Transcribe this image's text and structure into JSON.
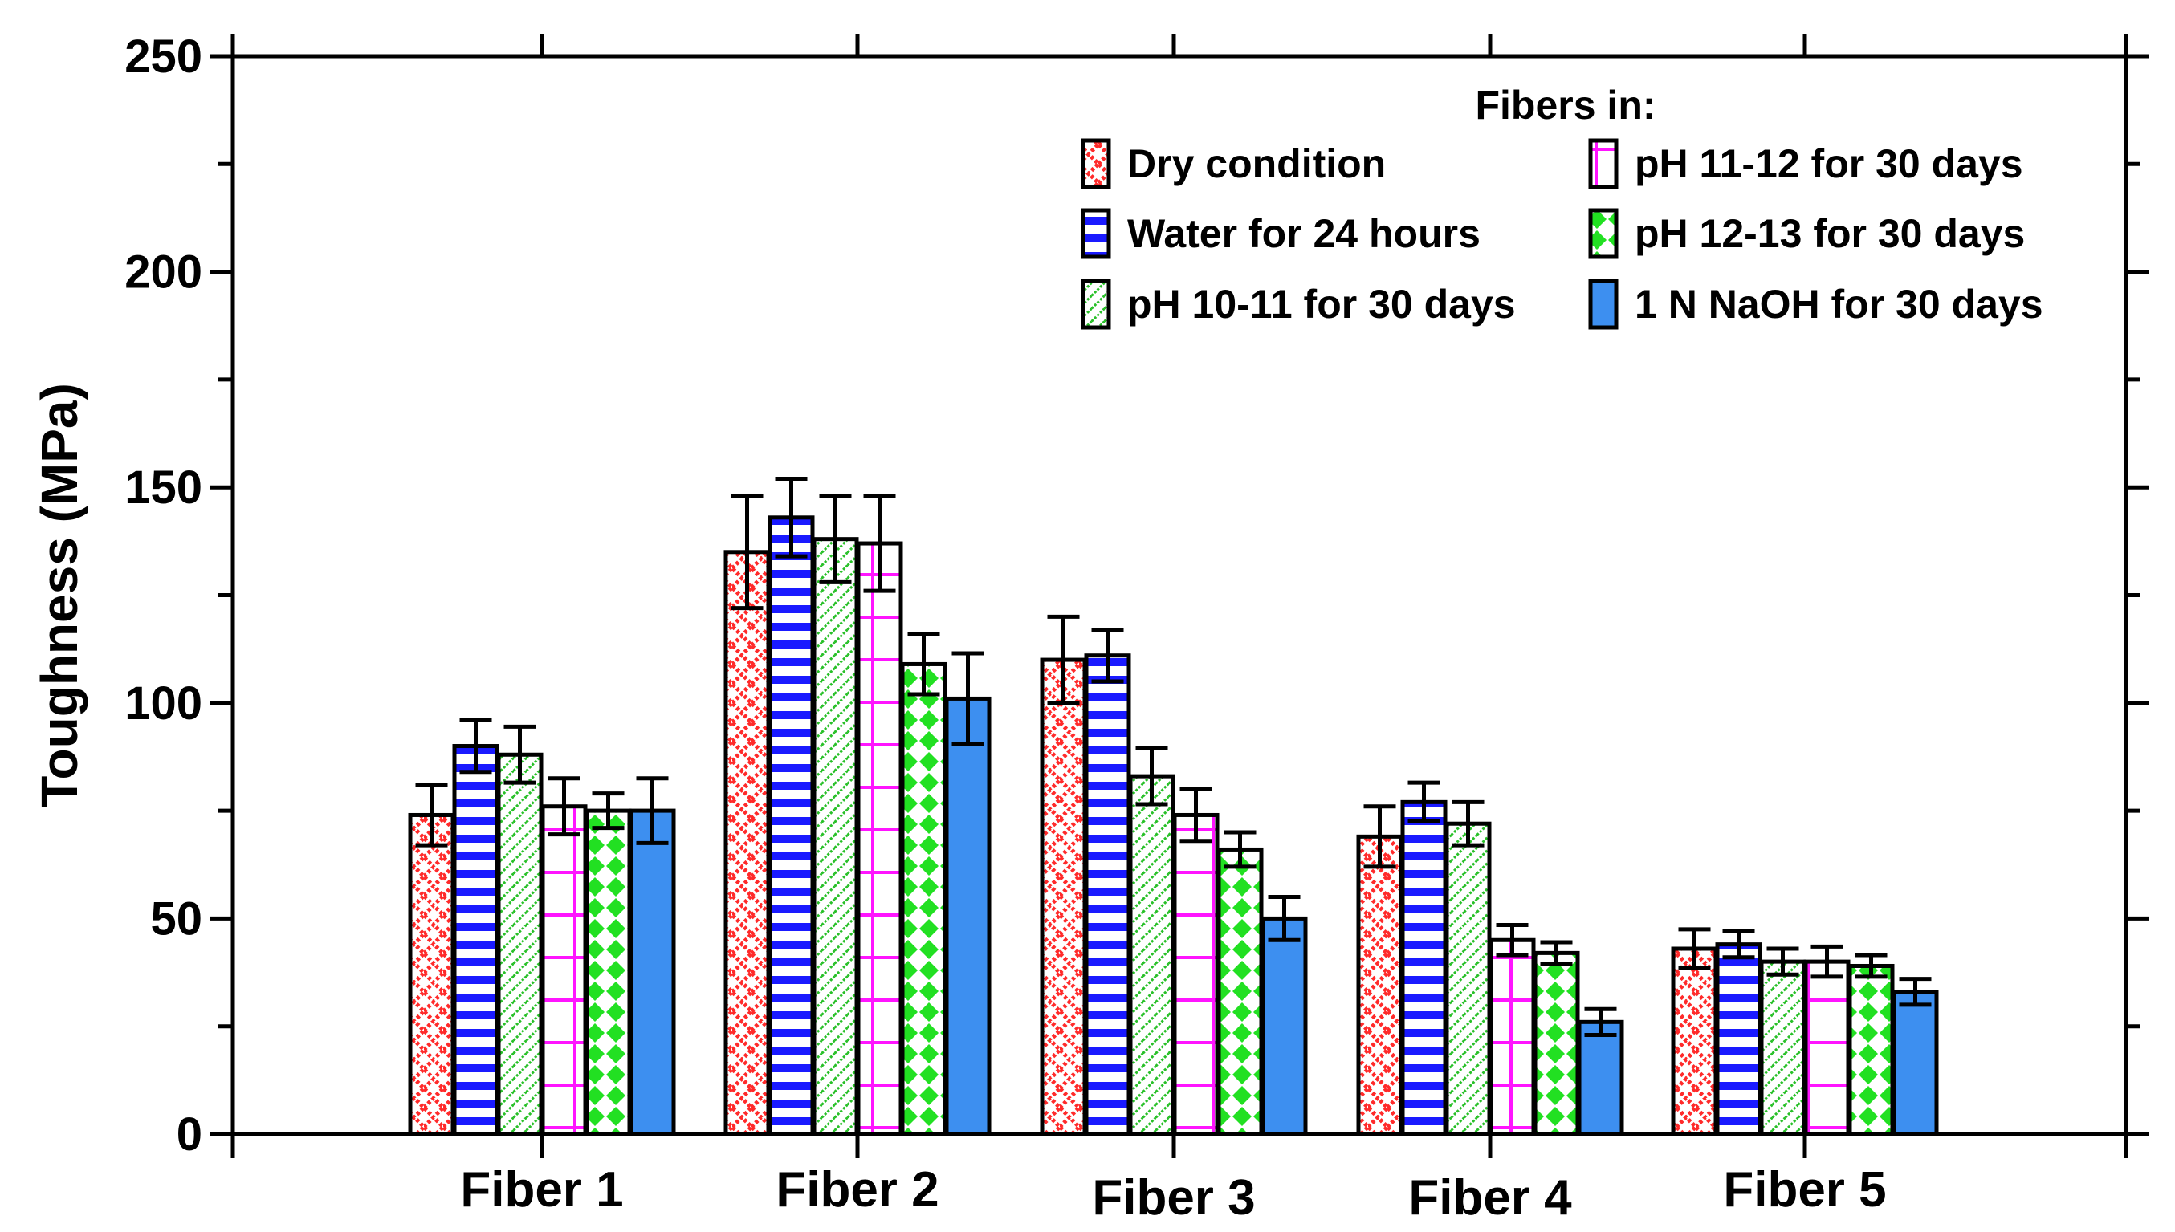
{
  "chart_data": {
    "type": "bar",
    "title": "",
    "xlabel": "",
    "ylabel": "Toughness (MPa)",
    "ylim": [
      0,
      250
    ],
    "yticks": [
      0,
      50,
      100,
      150,
      200,
      250
    ],
    "grid": false,
    "categories": [
      "Fiber 1",
      "Fiber 2",
      "Fiber 3",
      "Fiber 4",
      "Fiber 5"
    ],
    "legend_title": "Fibers in:",
    "legend_position": "top-right",
    "series": [
      {
        "name": "Dry condition",
        "color": "#ff2a2a",
        "pattern": "crosshatch",
        "values": [
          74,
          135,
          110,
          69,
          43
        ],
        "errors": [
          7,
          13,
          10,
          7,
          4.5
        ]
      },
      {
        "name": "Water for 24 hours",
        "color": "#1a1aff",
        "pattern": "horizontal",
        "values": [
          90,
          143,
          111,
          77,
          44
        ],
        "errors": [
          6,
          9,
          6,
          4.5,
          3
        ]
      },
      {
        "name": "pH 10-11 for 30 days",
        "color": "#28c028",
        "pattern": "diagonal",
        "values": [
          88,
          138,
          83,
          72,
          40
        ],
        "errors": [
          6.5,
          10,
          6.5,
          5,
          3
        ]
      },
      {
        "name": "pH 11-12 for 30 days",
        "color": "#ff14ff",
        "pattern": "grid",
        "values": [
          76,
          137,
          74,
          45,
          40
        ],
        "errors": [
          6.5,
          11,
          6,
          3.5,
          3.5
        ]
      },
      {
        "name": "pH 12-13 for 30 days",
        "color": "#22e022",
        "pattern": "diamonds",
        "values": [
          75,
          109,
          66,
          42,
          39
        ],
        "errors": [
          4,
          7,
          4,
          2.5,
          2.5
        ]
      },
      {
        "name": "1 N NaOH for 30 days",
        "color": "#3d8ff0",
        "pattern": "solid",
        "values": [
          75,
          101,
          50,
          26,
          33
        ],
        "errors": [
          7.5,
          10.5,
          5,
          3,
          3
        ]
      }
    ]
  }
}
